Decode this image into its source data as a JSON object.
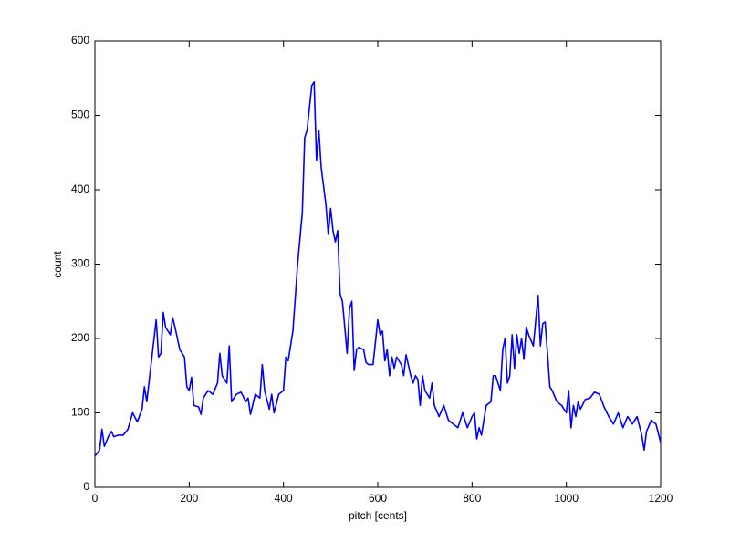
{
  "chart_data": {
    "type": "line",
    "xlabel": "pitch [cents]",
    "ylabel": "count",
    "xlim": [
      0,
      1200
    ],
    "ylim": [
      0,
      600
    ],
    "xticks": [
      0,
      200,
      400,
      600,
      800,
      1000,
      1200
    ],
    "yticks": [
      0,
      100,
      200,
      300,
      400,
      500,
      600
    ],
    "x": [
      0,
      10,
      15,
      20,
      30,
      35,
      40,
      50,
      60,
      70,
      80,
      90,
      100,
      105,
      110,
      120,
      130,
      135,
      140,
      145,
      150,
      160,
      165,
      170,
      180,
      190,
      195,
      200,
      205,
      210,
      220,
      225,
      230,
      240,
      250,
      260,
      265,
      270,
      280,
      285,
      290,
      300,
      310,
      320,
      325,
      330,
      340,
      350,
      355,
      360,
      370,
      375,
      380,
      390,
      400,
      405,
      410,
      420,
      430,
      440,
      445,
      450,
      460,
      465,
      470,
      475,
      480,
      490,
      495,
      500,
      505,
      510,
      515,
      520,
      525,
      530,
      535,
      540,
      545,
      550,
      555,
      560,
      570,
      575,
      580,
      590,
      600,
      605,
      610,
      615,
      620,
      625,
      630,
      635,
      640,
      650,
      655,
      660,
      670,
      675,
      680,
      685,
      690,
      695,
      700,
      710,
      715,
      720,
      730,
      740,
      750,
      760,
      770,
      780,
      790,
      800,
      805,
      810,
      815,
      820,
      830,
      840,
      845,
      850,
      860,
      865,
      870,
      875,
      880,
      885,
      890,
      895,
      900,
      905,
      910,
      915,
      920,
      930,
      940,
      945,
      950,
      955,
      960,
      965,
      970,
      980,
      990,
      1000,
      1005,
      1010,
      1015,
      1020,
      1025,
      1030,
      1040,
      1050,
      1060,
      1070,
      1080,
      1090,
      1100,
      1110,
      1120,
      1130,
      1140,
      1150,
      1160,
      1165,
      1170,
      1180,
      1190,
      1200
    ],
    "series": [
      {
        "color": "#0000ff",
        "values": [
          42,
          50,
          78,
          55,
          70,
          75,
          68,
          70,
          70,
          78,
          100,
          88,
          105,
          135,
          115,
          170,
          225,
          175,
          180,
          235,
          215,
          205,
          228,
          215,
          185,
          175,
          135,
          130,
          148,
          110,
          108,
          98,
          120,
          130,
          125,
          140,
          180,
          150,
          140,
          190,
          115,
          125,
          128,
          115,
          120,
          98,
          125,
          120,
          165,
          130,
          105,
          125,
          100,
          125,
          130,
          175,
          170,
          210,
          300,
          370,
          470,
          480,
          540,
          545,
          440,
          480,
          430,
          380,
          340,
          375,
          345,
          330,
          345,
          260,
          250,
          215,
          180,
          240,
          250,
          157,
          185,
          188,
          185,
          168,
          165,
          165,
          225,
          205,
          210,
          170,
          185,
          150,
          175,
          160,
          175,
          165,
          150,
          178,
          150,
          140,
          150,
          145,
          110,
          150,
          130,
          120,
          140,
          110,
          95,
          110,
          90,
          85,
          80,
          100,
          80,
          95,
          100,
          65,
          80,
          70,
          110,
          115,
          150,
          150,
          130,
          185,
          200,
          140,
          150,
          205,
          160,
          205,
          180,
          200,
          172,
          215,
          205,
          190,
          258,
          190,
          220,
          222,
          180,
          135,
          130,
          115,
          110,
          100,
          130,
          80,
          110,
          95,
          115,
          105,
          118,
          120,
          128,
          125,
          108,
          95,
          85,
          100,
          80,
          95,
          85,
          95,
          70,
          50,
          75,
          90,
          85,
          60
        ]
      }
    ],
    "grid": false
  }
}
